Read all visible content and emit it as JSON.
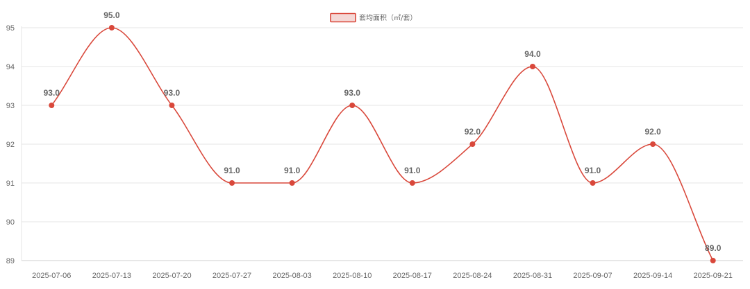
{
  "chart_data": {
    "type": "line",
    "categories": [
      "2025-07-06",
      "2025-07-13",
      "2025-07-20",
      "2025-07-27",
      "2025-08-03",
      "2025-08-10",
      "2025-08-17",
      "2025-08-24",
      "2025-08-31",
      "2025-09-07",
      "2025-09-14",
      "2025-09-21"
    ],
    "series": [
      {
        "name": "套均面积（㎡/套）",
        "values": [
          93.0,
          95.0,
          93.0,
          91.0,
          91.0,
          93.0,
          91.0,
          92.0,
          94.0,
          91.0,
          92.0,
          89.0
        ],
        "color": "#d9483b",
        "fill": "#f4d8d6"
      }
    ],
    "data_labels": [
      "93.0",
      "95.0",
      "93.0",
      "91.0",
      "91.0",
      "93.0",
      "91.0",
      "92.0",
      "94.0",
      "91.0",
      "92.0",
      "89.0"
    ],
    "title": "",
    "xlabel": "",
    "ylabel": "",
    "ylim": [
      89,
      95
    ],
    "yticks": [
      "89",
      "90",
      "91",
      "92",
      "93",
      "94",
      "95"
    ],
    "smooth": true,
    "grid": true,
    "legend_position": "top-center"
  }
}
